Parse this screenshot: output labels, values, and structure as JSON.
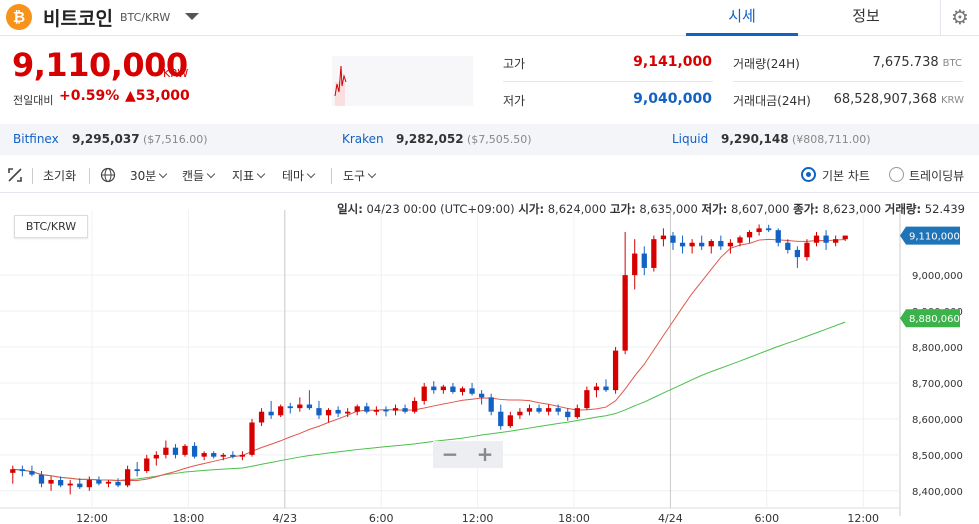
{
  "header": {
    "coin_icon": "bitcoin-icon",
    "coin_symbol": "₿",
    "coin_name": "비트코인",
    "pair": "BTC/KRW",
    "tab_price": "시세",
    "tab_info": "정보",
    "settings_icon": "gear-icon"
  },
  "price": {
    "current": "9,110,000",
    "unit": "KRW",
    "prev_label": "전일대비",
    "change_rate": "+0.59%",
    "change_amount": "▲53,000"
  },
  "stats": {
    "high_label": "고가",
    "high": "9,141,000",
    "low_label": "저가",
    "low": "9,040,000",
    "volume_label": "거래량(24H)",
    "volume": "7,675.738",
    "volume_unit": "BTC",
    "amount_label": "거래대금(24H)",
    "amount": "68,528,907,368",
    "amount_unit": "KRW"
  },
  "exchanges": [
    {
      "name": "Bitfinex",
      "price": "9,295,037",
      "usd": "($7,516.00)"
    },
    {
      "name": "Kraken",
      "price": "9,282,052",
      "usd": "($7,505.50)"
    },
    {
      "name": "Liquid",
      "price": "9,290,148",
      "usd": "(¥808,711.00)"
    }
  ],
  "toolbar": {
    "fullscreen_icon": "expand-icon",
    "reset": "초기화",
    "globe_icon": "globe-icon",
    "interval": "30분",
    "candle": "캔들",
    "indicator": "지표",
    "theme": "테마",
    "tools": "도구",
    "basic_chart": "기본 차트",
    "tradingview": "트레이딩뷰"
  },
  "info_line": {
    "time_label": "일시:",
    "time": "04/23 00:00 (UTC+09:00)",
    "open_label": "시가:",
    "open": "8,624,000",
    "high_label": "고가:",
    "high": "8,635,000",
    "low_label": "저가:",
    "low": "8,607,000",
    "close_label": "종가:",
    "close": "8,623,000",
    "vol_label": "거래량:",
    "vol": "52.439"
  },
  "zoom": {
    "minus": "−",
    "plus": "+"
  },
  "colors": {
    "up": "#d60000",
    "down": "#1261c4",
    "ma_short": "#e0574c",
    "ma_long": "#4cbf4c",
    "accent": "#1261c4"
  },
  "chart_data": {
    "type": "candlestick",
    "pair_label": "BTC/KRW",
    "y_ticks": [
      "9,000,000",
      "8,900,000",
      "8,800,000",
      "8,700,000",
      "8,600,000",
      "8,500,000",
      "8,400,000"
    ],
    "x_ticks": [
      "12:00",
      "18:00",
      "4/23",
      "6:00",
      "12:00",
      "18:00",
      "4/24",
      "6:00",
      "12:00"
    ],
    "last_price_label": "9,110,000",
    "ma_long_label": "8,880,060",
    "ylim": [
      8380000,
      9170000
    ],
    "candles": [
      [
        8450000,
        8470000,
        8420000,
        8460000
      ],
      [
        8460000,
        8470000,
        8440000,
        8455000
      ],
      [
        8455000,
        8470000,
        8440000,
        8445000
      ],
      [
        8445000,
        8455000,
        8410000,
        8420000
      ],
      [
        8420000,
        8440000,
        8400000,
        8430000
      ],
      [
        8430000,
        8440000,
        8410000,
        8415000
      ],
      [
        8415000,
        8430000,
        8390000,
        8420000
      ],
      [
        8420000,
        8435000,
        8405000,
        8410000
      ],
      [
        8410000,
        8440000,
        8400000,
        8430000
      ],
      [
        8430000,
        8440000,
        8415000,
        8420000
      ],
      [
        8420000,
        8430000,
        8410000,
        8425000
      ],
      [
        8425000,
        8435000,
        8410000,
        8415000
      ],
      [
        8415000,
        8470000,
        8410000,
        8460000
      ],
      [
        8460000,
        8480000,
        8440000,
        8455000
      ],
      [
        8455000,
        8500000,
        8450000,
        8490000
      ],
      [
        8490000,
        8510000,
        8470000,
        8500000
      ],
      [
        8500000,
        8540000,
        8490000,
        8520000
      ],
      [
        8520000,
        8530000,
        8490000,
        8500000
      ],
      [
        8500000,
        8530000,
        8495000,
        8525000
      ],
      [
        8525000,
        8535000,
        8490000,
        8495000
      ],
      [
        8495000,
        8510000,
        8485000,
        8505000
      ],
      [
        8505000,
        8510000,
        8490000,
        8495000
      ],
      [
        8495000,
        8505000,
        8485000,
        8500000
      ],
      [
        8500000,
        8510000,
        8490000,
        8495000
      ],
      [
        8495000,
        8510000,
        8485000,
        8500000
      ],
      [
        8500000,
        8600000,
        8495000,
        8590000
      ],
      [
        8590000,
        8630000,
        8580000,
        8620000
      ],
      [
        8620000,
        8650000,
        8600000,
        8610000
      ],
      [
        8610000,
        8640000,
        8605000,
        8635000
      ],
      [
        8635000,
        8645000,
        8615000,
        8630000
      ],
      [
        8630000,
        8660000,
        8620000,
        8640000
      ],
      [
        8640000,
        8680000,
        8625000,
        8630000
      ],
      [
        8630000,
        8650000,
        8600000,
        8610000
      ],
      [
        8610000,
        8630000,
        8590000,
        8625000
      ],
      [
        8625000,
        8635000,
        8605000,
        8615000
      ],
      [
        8615000,
        8630000,
        8605000,
        8620000
      ],
      [
        8620000,
        8640000,
        8610000,
        8635000
      ],
      [
        8635000,
        8645000,
        8615000,
        8620000
      ],
      [
        8620000,
        8635000,
        8610000,
        8625000
      ],
      [
        8625000,
        8635000,
        8607000,
        8623000
      ],
      [
        8623000,
        8640000,
        8610000,
        8630000
      ],
      [
        8630000,
        8640000,
        8615000,
        8620000
      ],
      [
        8620000,
        8660000,
        8615000,
        8650000
      ],
      [
        8650000,
        8700000,
        8640000,
        8690000
      ],
      [
        8690000,
        8705000,
        8670000,
        8680000
      ],
      [
        8680000,
        8695000,
        8670000,
        8690000
      ],
      [
        8690000,
        8700000,
        8670000,
        8675000
      ],
      [
        8675000,
        8690000,
        8665000,
        8685000
      ],
      [
        8685000,
        8700000,
        8665000,
        8670000
      ],
      [
        8670000,
        8680000,
        8640000,
        8660000
      ],
      [
        8660000,
        8670000,
        8610000,
        8620000
      ],
      [
        8620000,
        8640000,
        8570000,
        8580000
      ],
      [
        8580000,
        8620000,
        8575000,
        8610000
      ],
      [
        8610000,
        8630000,
        8600000,
        8620000
      ],
      [
        8620000,
        8640000,
        8610000,
        8630000
      ],
      [
        8630000,
        8640000,
        8615000,
        8620000
      ],
      [
        8620000,
        8640000,
        8610000,
        8630000
      ],
      [
        8630000,
        8640000,
        8610000,
        8620000
      ],
      [
        8620000,
        8630000,
        8595000,
        8605000
      ],
      [
        8605000,
        8640000,
        8600000,
        8630000
      ],
      [
        8630000,
        8690000,
        8625000,
        8680000
      ],
      [
        8680000,
        8700000,
        8660000,
        8690000
      ],
      [
        8690000,
        8710000,
        8675000,
        8680000
      ],
      [
        8680000,
        8800000,
        8670000,
        8790000
      ],
      [
        8790000,
        9120000,
        8780000,
        9000000
      ],
      [
        9000000,
        9100000,
        8960000,
        9060000
      ],
      [
        9060000,
        9080000,
        9000000,
        9020000
      ],
      [
        9020000,
        9110000,
        9010000,
        9100000
      ],
      [
        9100000,
        9130000,
        9080000,
        9110000
      ],
      [
        9110000,
        9120000,
        9070000,
        9090000
      ],
      [
        9090000,
        9110000,
        9060000,
        9080000
      ],
      [
        9080000,
        9100000,
        9060000,
        9090000
      ],
      [
        9090000,
        9110000,
        9070000,
        9080000
      ],
      [
        9080000,
        9100000,
        9060000,
        9095000
      ],
      [
        9095000,
        9110000,
        9070000,
        9080000
      ],
      [
        9080000,
        9100000,
        9060000,
        9090000
      ],
      [
        9090000,
        9110000,
        9080000,
        9105000
      ],
      [
        9105000,
        9125000,
        9090000,
        9120000
      ],
      [
        9120000,
        9141000,
        9110000,
        9130000
      ],
      [
        9130000,
        9140000,
        9120000,
        9125000
      ],
      [
        9125000,
        9130000,
        9080000,
        9090000
      ],
      [
        9090000,
        9100000,
        9060000,
        9070000
      ],
      [
        9070000,
        9080000,
        9020000,
        9050000
      ],
      [
        9050000,
        9100000,
        9040000,
        9090000
      ],
      [
        9090000,
        9120000,
        9080000,
        9110000
      ],
      [
        9110000,
        9125000,
        9070000,
        9090000
      ],
      [
        9090000,
        9110000,
        9080000,
        9100000
      ],
      [
        9100000,
        9110000,
        9095000,
        9110000
      ]
    ]
  }
}
